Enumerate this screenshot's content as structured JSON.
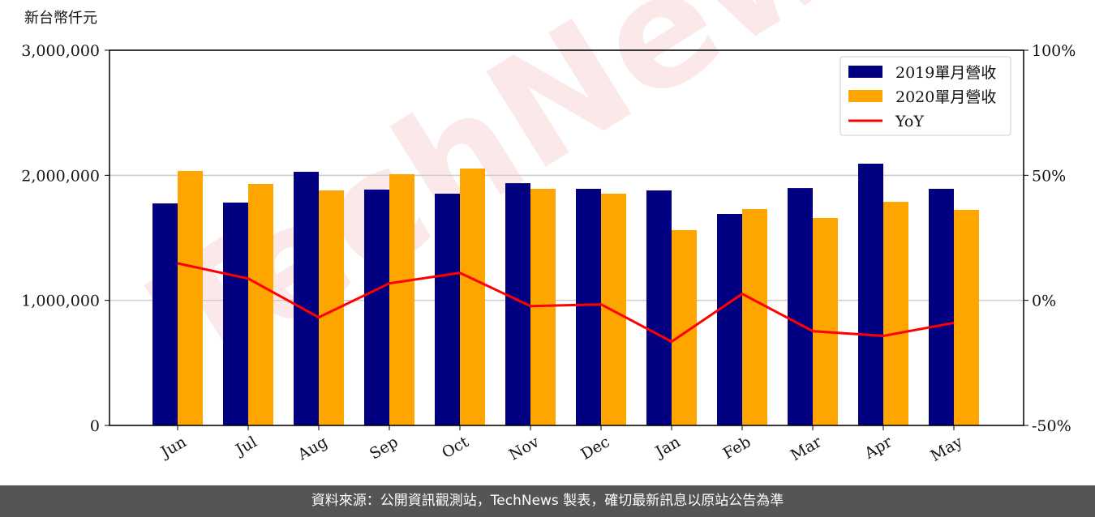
{
  "chart_data": {
    "type": "bar_line",
    "y_label": "新台幣仟元",
    "watermark": "TechNews",
    "categories": [
      "Jun",
      "Jul",
      "Aug",
      "Sep",
      "Oct",
      "Nov",
      "Dec",
      "Jan",
      "Feb",
      "Mar",
      "Apr",
      "May"
    ],
    "series": [
      {
        "name": "2019單月營收",
        "color": "#000080",
        "type": "bar",
        "values": [
          1775000,
          1782000,
          2028000,
          1886000,
          1853000,
          1937000,
          1892000,
          1879000,
          1691000,
          1898000,
          2093000,
          1892000
        ]
      },
      {
        "name": "2020單月營收",
        "color": "#ffa500",
        "type": "bar",
        "values": [
          2035000,
          1931000,
          1879000,
          2009000,
          2054000,
          1892000,
          1853000,
          1562000,
          1730000,
          1659000,
          1788000,
          1724000
        ]
      },
      {
        "name": "YoY",
        "color": "#ff0000",
        "type": "line",
        "axis": "y2",
        "values": [
          14.8,
          8.7,
          -6.8,
          6.8,
          11,
          -2.3,
          -1.6,
          -16.5,
          2.6,
          -12.3,
          -14.2,
          -9.0
        ]
      }
    ],
    "ylim": [
      0,
      3000000
    ],
    "yticks": [
      0,
      {
        "value": 1000000,
        "label": "1,000,000"
      },
      {
        "value": 2000000,
        "label": "2,000,000"
      },
      {
        "value": 3000000,
        "label": "3,000,000"
      }
    ],
    "y2lim": [
      -50,
      100
    ],
    "y2ticks": [
      {
        "value": -50,
        "label": "-50%"
      },
      {
        "value": 0,
        "label": "0%"
      },
      {
        "value": 50,
        "label": "50%"
      },
      {
        "value": 100,
        "label": "100%"
      }
    ],
    "grid": true,
    "legend": "upper right"
  },
  "footer": "資料來源：公開資訊觀測站，TechNews 製表，確切最新訊息以原站公告為準"
}
